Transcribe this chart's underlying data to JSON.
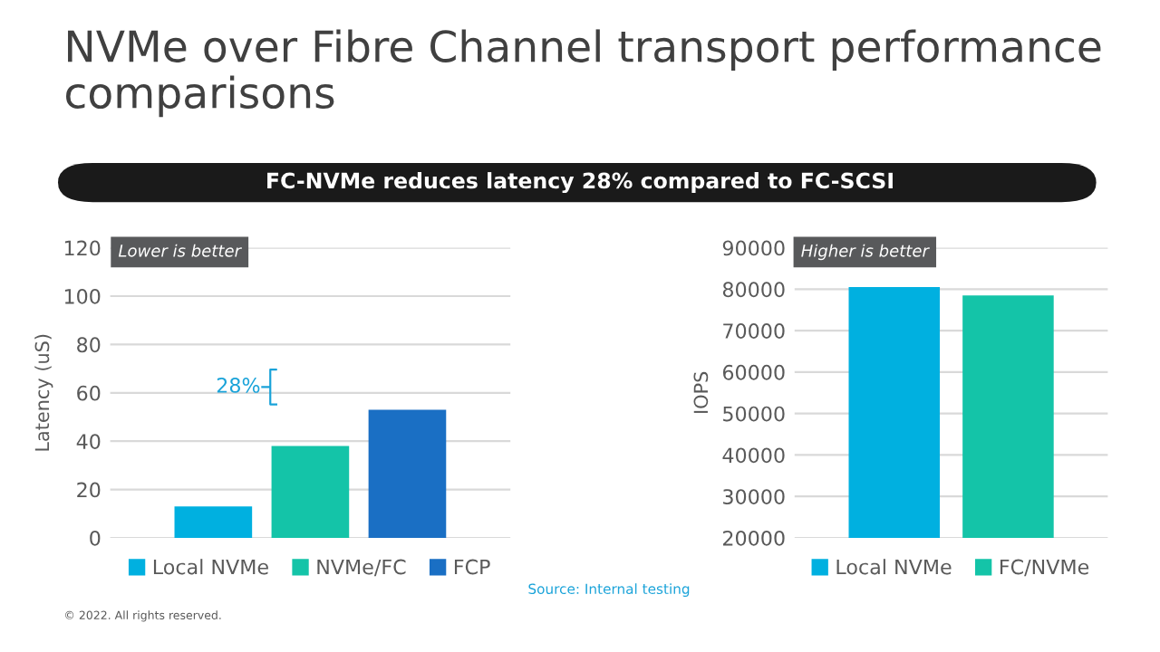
{
  "chart_data": [
    {
      "type": "bar",
      "title": "NVMe over Fibre Channel transport performance comparisons",
      "subtitle": "FC-NVMe reduces latency 28% compared to FC-SCSI",
      "ylabel": "Latency (uS)",
      "categories": [
        null
      ],
      "series": [
        {
          "name": "Local NVMe",
          "color": "#00b0e0",
          "values": [
            13
          ]
        },
        {
          "name": "NVMe/FC",
          "color": "#14c4a8",
          "values": [
            38
          ]
        },
        {
          "name": "FCP",
          "color": "#1a6fc4",
          "values": [
            53
          ]
        }
      ],
      "ylim": [
        0,
        120
      ],
      "yticks": [
        0,
        20,
        40,
        60,
        80,
        100,
        120
      ],
      "grid": "y",
      "legend": "bottom",
      "tick_labels": "y",
      "annotations": [
        "Lower is better",
        "28%",
        "© 2022. All rights reserved."
      ]
    },
    {
      "type": "bar",
      "ylabel": "IOPS",
      "categories": [
        null
      ],
      "series": [
        {
          "name": "Local NVMe",
          "color": "#00b0e0",
          "values": [
            80500
          ]
        },
        {
          "name": "FC/NVMe",
          "color": "#14c4a8",
          "values": [
            78500
          ]
        }
      ],
      "ylim": [
        20000,
        90000
      ],
      "yticks": [
        20000,
        30000,
        40000,
        50000,
        60000,
        70000,
        80000,
        90000
      ],
      "grid": "y",
      "legend": "bottom",
      "tick_labels": "y",
      "annotations": [
        "Higher is better",
        "Source: Internal testing"
      ]
    }
  ]
}
